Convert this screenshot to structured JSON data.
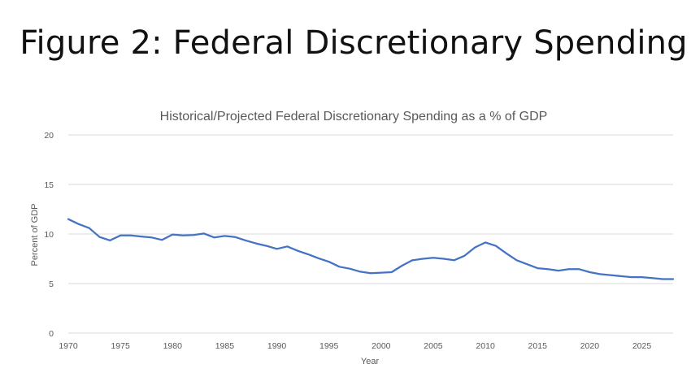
{
  "figure_title": "Figure 2: Federal Discretionary Spending",
  "chart_data": {
    "type": "line",
    "title": "Historical/Projected Federal Discretionary Spending as a % of GDP",
    "xlabel": "Year",
    "ylabel": "Percent of GDP",
    "xlim": [
      1970,
      2028
    ],
    "ylim": [
      0,
      20
    ],
    "x_ticks": [
      1970,
      1975,
      1980,
      1985,
      1990,
      1995,
      2000,
      2005,
      2010,
      2015,
      2020,
      2025
    ],
    "y_ticks": [
      0,
      5,
      10,
      15,
      20
    ],
    "grid": true,
    "legend": "none",
    "series": [
      {
        "color": "#4472c4",
        "x": [
          1970,
          1971,
          1972,
          1973,
          1974,
          1975,
          1976,
          1977,
          1978,
          1979,
          1980,
          1981,
          1982,
          1983,
          1984,
          1985,
          1986,
          1987,
          1988,
          1989,
          1990,
          1991,
          1992,
          1993,
          1994,
          1995,
          1996,
          1997,
          1998,
          1999,
          2000,
          2001,
          2002,
          2003,
          2004,
          2005,
          2006,
          2007,
          2008,
          2009,
          2010,
          2011,
          2012,
          2013,
          2014,
          2015,
          2016,
          2017,
          2018,
          2019,
          2020,
          2021,
          2022,
          2023,
          2024,
          2025,
          2026,
          2027,
          2028
        ],
        "y": [
          11.5,
          11.0,
          10.6,
          9.7,
          9.35,
          9.85,
          9.85,
          9.75,
          9.65,
          9.4,
          9.95,
          9.85,
          9.9,
          10.05,
          9.65,
          9.8,
          9.7,
          9.35,
          9.05,
          8.8,
          8.5,
          8.75,
          8.3,
          7.95,
          7.55,
          7.2,
          6.7,
          6.5,
          6.2,
          6.05,
          6.1,
          6.15,
          6.8,
          7.35,
          7.5,
          7.6,
          7.5,
          7.35,
          7.8,
          8.65,
          9.15,
          8.8,
          8.05,
          7.35,
          6.95,
          6.55,
          6.45,
          6.3,
          6.45,
          6.45,
          6.15,
          5.95,
          5.85,
          5.75,
          5.65,
          5.65,
          5.55,
          5.45,
          5.45
        ]
      }
    ]
  }
}
